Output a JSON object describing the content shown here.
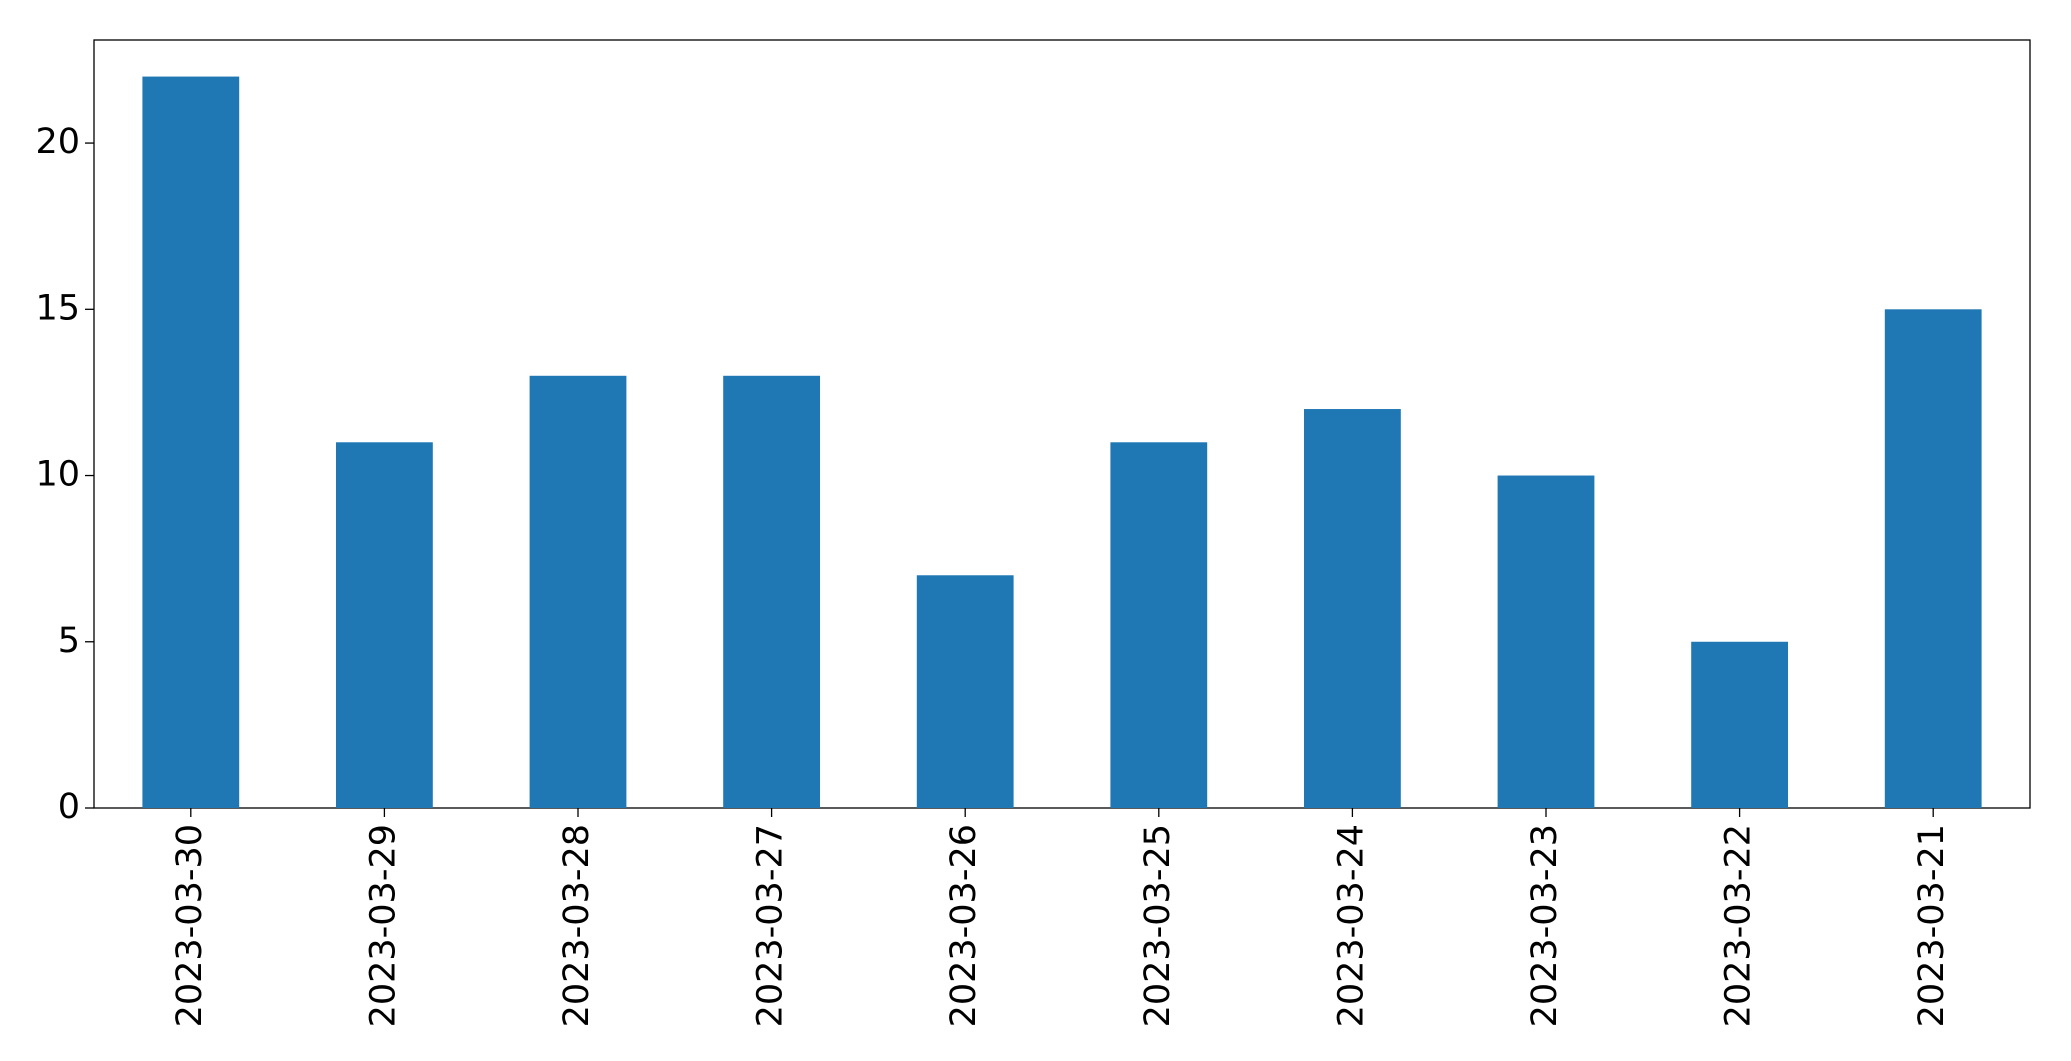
{
  "chart_data": {
    "type": "bar",
    "categories": [
      "2023-03-30",
      "2023-03-29",
      "2023-03-28",
      "2023-03-27",
      "2023-03-26",
      "2023-03-25",
      "2023-03-24",
      "2023-03-23",
      "2023-03-22",
      "2023-03-21"
    ],
    "values": [
      22,
      11,
      13,
      13,
      7,
      11,
      12,
      10,
      5,
      15
    ],
    "color": "#1f77b4",
    "ylim": [
      0,
      23.1
    ],
    "yticks": [
      0,
      5,
      10,
      15,
      20
    ],
    "grid": false
  }
}
